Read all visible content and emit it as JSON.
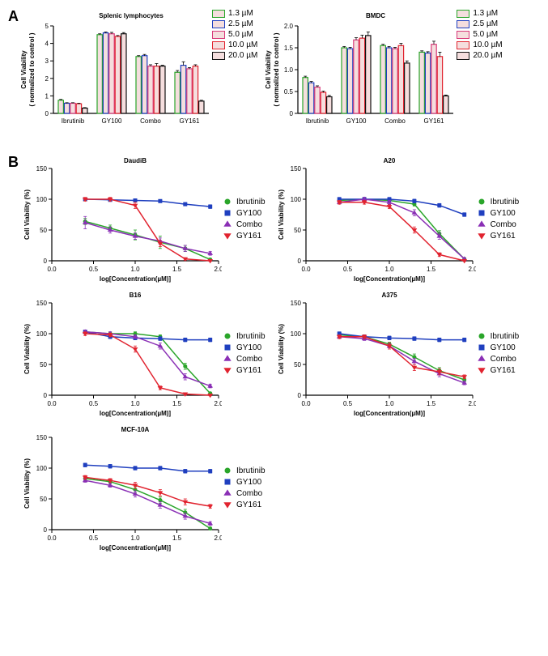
{
  "panelA": {
    "label": "A",
    "charts": [
      {
        "title": "Splenic lymphocytes",
        "title_fontsize": 14,
        "ylabel": "Cell Viability\n( normalized to control )",
        "ylim": [
          0,
          5
        ],
        "ytick_step": 1,
        "categories": [
          "Ibrutinib",
          "GY100",
          "Combo",
          "GY161"
        ],
        "legend": [
          "1.3 µM",
          "2.5 µM",
          "5.0 µM",
          "10.0 µM",
          "20.0 µM"
        ],
        "colors": [
          "#2aa52a",
          "#1f3fbf",
          "#d83a7a",
          "#e1232f",
          "#111111"
        ],
        "bar_fill": "#ffffff",
        "pattern_fill": "#f5dede",
        "values": [
          [
            0.75,
            0.58,
            0.58,
            0.55,
            0.3
          ],
          [
            4.5,
            4.6,
            4.55,
            4.4,
            4.55
          ],
          [
            3.25,
            3.3,
            2.7,
            2.7,
            2.7
          ],
          [
            2.35,
            2.75,
            2.55,
            2.7,
            0.7
          ]
        ],
        "errors": [
          [
            0.05,
            0.03,
            0.03,
            0.03,
            0.03
          ],
          [
            0.05,
            0.05,
            0.08,
            0.05,
            0.07
          ],
          [
            0.05,
            0.07,
            0.08,
            0.15,
            0.05
          ],
          [
            0.1,
            0.2,
            0.07,
            0.08,
            0.05
          ]
        ]
      },
      {
        "title": "BMDC",
        "title_fontsize": 14,
        "ylabel": "Cell Viability\n( normalized to control )",
        "ylim": [
          0,
          2.0
        ],
        "ytick_step": 0.5,
        "categories": [
          "Ibrutinib",
          "GY100",
          "Combo",
          "GY161"
        ],
        "legend": [
          "1.3 µM",
          "2.5 µM",
          "5.0 µM",
          "10.0 µM",
          "20.0 µM"
        ],
        "colors": [
          "#2aa52a",
          "#1f3fbf",
          "#d83a7a",
          "#e1232f",
          "#111111"
        ],
        "bar_fill": "#ffffff",
        "pattern_fill": "#f5dede",
        "values": [
          [
            0.82,
            0.7,
            0.6,
            0.48,
            0.38
          ],
          [
            1.5,
            1.48,
            1.68,
            1.72,
            1.78
          ],
          [
            1.55,
            1.5,
            1.48,
            1.55,
            1.15
          ],
          [
            1.4,
            1.38,
            1.58,
            1.3,
            0.4
          ]
        ],
        "errors": [
          [
            0.03,
            0.03,
            0.03,
            0.03,
            0.03
          ],
          [
            0.03,
            0.03,
            0.05,
            0.07,
            0.08
          ],
          [
            0.03,
            0.03,
            0.03,
            0.05,
            0.05
          ],
          [
            0.03,
            0.03,
            0.07,
            0.1,
            0.02
          ]
        ]
      }
    ]
  },
  "panelB": {
    "label": "B",
    "xlabel": "log[Concentration(µM)]",
    "ylabel": "Cell Viability (%)",
    "xlim": [
      0.0,
      2.0
    ],
    "xtick_step": 0.5,
    "ylim": [
      0,
      150
    ],
    "ytick_step": 50,
    "series_labels": [
      "Ibrutinib",
      "GY100",
      "Combo",
      "GY161"
    ],
    "series_colors": [
      "#2aa52a",
      "#1f3fbf",
      "#8a2fb5",
      "#e1232f"
    ],
    "series_markers": [
      "circle",
      "square",
      "triangle-up",
      "triangle-down"
    ],
    "charts": [
      {
        "title": "DaudiB",
        "curves": {
          "Ibrutinib": [
            [
              0.4,
              64
            ],
            [
              0.7,
              53
            ],
            [
              1.0,
              42
            ],
            [
              1.3,
              30
            ],
            [
              1.6,
              20
            ],
            [
              1.9,
              2
            ]
          ],
          "GY100": [
            [
              0.4,
              100
            ],
            [
              0.7,
              99
            ],
            [
              1.0,
              98
            ],
            [
              1.3,
              97
            ],
            [
              1.6,
              92
            ],
            [
              1.9,
              88
            ]
          ],
          "Combo": [
            [
              0.4,
              62
            ],
            [
              0.7,
              50
            ],
            [
              1.0,
              40
            ],
            [
              1.3,
              32
            ],
            [
              1.6,
              20
            ],
            [
              1.9,
              12
            ]
          ],
          "GY161": [
            [
              0.4,
              100
            ],
            [
              0.7,
              100
            ],
            [
              1.0,
              90
            ],
            [
              1.3,
              28
            ],
            [
              1.6,
              3
            ],
            [
              1.9,
              0
            ]
          ]
        },
        "errors": {
          "Ibrutinib": [
            5,
            5,
            8,
            10,
            5,
            2
          ],
          "GY100": [
            2,
            2,
            2,
            2,
            2,
            3
          ],
          "Combo": [
            10,
            5,
            5,
            5,
            5,
            3
          ],
          "GY161": [
            3,
            3,
            5,
            5,
            2,
            1
          ]
        }
      },
      {
        "title": "A20",
        "curves": {
          "Ibrutinib": [
            [
              0.4,
              98
            ],
            [
              0.7,
              100
            ],
            [
              1.0,
              98
            ],
            [
              1.3,
              92
            ],
            [
              1.6,
              44
            ],
            [
              1.9,
              3
            ]
          ],
          "GY100": [
            [
              0.4,
              100
            ],
            [
              0.7,
              100
            ],
            [
              1.0,
              100
            ],
            [
              1.3,
              97
            ],
            [
              1.6,
              90
            ],
            [
              1.9,
              75
            ]
          ],
          "Combo": [
            [
              0.4,
              95
            ],
            [
              0.7,
              100
            ],
            [
              1.0,
              95
            ],
            [
              1.3,
              78
            ],
            [
              1.6,
              40
            ],
            [
              1.9,
              3
            ]
          ],
          "GY161": [
            [
              0.4,
              95
            ],
            [
              0.7,
              95
            ],
            [
              1.0,
              88
            ],
            [
              1.3,
              50
            ],
            [
              1.6,
              10
            ],
            [
              1.9,
              0
            ]
          ]
        },
        "errors": {
          "Ibrutinib": [
            3,
            3,
            3,
            3,
            5,
            2
          ],
          "GY100": [
            3,
            3,
            3,
            3,
            3,
            3
          ],
          "Combo": [
            3,
            3,
            3,
            5,
            5,
            2
          ],
          "GY161": [
            3,
            3,
            3,
            5,
            3,
            1
          ]
        }
      },
      {
        "title": "B16",
        "curves": {
          "Ibrutinib": [
            [
              0.4,
              103
            ],
            [
              0.7,
              100
            ],
            [
              1.0,
              100
            ],
            [
              1.3,
              95
            ],
            [
              1.6,
              47
            ],
            [
              1.9,
              3
            ]
          ],
          "GY100": [
            [
              0.4,
              103
            ],
            [
              0.7,
              95
            ],
            [
              1.0,
              93
            ],
            [
              1.3,
              92
            ],
            [
              1.6,
              90
            ],
            [
              1.9,
              90
            ]
          ],
          "Combo": [
            [
              0.4,
              103
            ],
            [
              0.7,
              100
            ],
            [
              1.0,
              95
            ],
            [
              1.3,
              80
            ],
            [
              1.6,
              30
            ],
            [
              1.9,
              15
            ]
          ],
          "GY161": [
            [
              0.4,
              100
            ],
            [
              0.7,
              98
            ],
            [
              1.0,
              75
            ],
            [
              1.3,
              12
            ],
            [
              1.6,
              2
            ],
            [
              1.9,
              0
            ]
          ]
        },
        "errors": {
          "Ibrutinib": [
            3,
            3,
            3,
            3,
            5,
            2
          ],
          "GY100": [
            3,
            3,
            3,
            3,
            3,
            3
          ],
          "Combo": [
            3,
            3,
            3,
            5,
            5,
            3
          ],
          "GY161": [
            3,
            3,
            5,
            3,
            2,
            1
          ]
        }
      },
      {
        "title": "A375",
        "curves": {
          "Ibrutinib": [
            [
              0.4,
              98
            ],
            [
              0.7,
              95
            ],
            [
              1.0,
              83
            ],
            [
              1.3,
              62
            ],
            [
              1.6,
              40
            ],
            [
              1.9,
              25
            ]
          ],
          "GY100": [
            [
              0.4,
              100
            ],
            [
              0.7,
              95
            ],
            [
              1.0,
              93
            ],
            [
              1.3,
              92
            ],
            [
              1.6,
              90
            ],
            [
              1.9,
              90
            ]
          ],
          "Combo": [
            [
              0.4,
              95
            ],
            [
              0.7,
              92
            ],
            [
              1.0,
              80
            ],
            [
              1.3,
              55
            ],
            [
              1.6,
              35
            ],
            [
              1.9,
              20
            ]
          ],
          "GY161": [
            [
              0.4,
              95
            ],
            [
              0.7,
              95
            ],
            [
              1.0,
              80
            ],
            [
              1.3,
              45
            ],
            [
              1.6,
              38
            ],
            [
              1.9,
              30
            ]
          ]
        },
        "errors": {
          "Ibrutinib": [
            3,
            3,
            3,
            5,
            5,
            3
          ],
          "GY100": [
            3,
            3,
            3,
            3,
            3,
            3
          ],
          "Combo": [
            3,
            3,
            3,
            5,
            5,
            3
          ],
          "GY161": [
            3,
            3,
            5,
            5,
            5,
            3
          ]
        }
      },
      {
        "title": "MCF-10A",
        "curves": {
          "Ibrutinib": [
            [
              0.4,
              83
            ],
            [
              0.7,
              78
            ],
            [
              1.0,
              65
            ],
            [
              1.3,
              48
            ],
            [
              1.6,
              28
            ],
            [
              1.9,
              2
            ]
          ],
          "GY100": [
            [
              0.4,
              105
            ],
            [
              0.7,
              103
            ],
            [
              1.0,
              100
            ],
            [
              1.3,
              100
            ],
            [
              1.6,
              95
            ],
            [
              1.9,
              95
            ]
          ],
          "Combo": [
            [
              0.4,
              80
            ],
            [
              0.7,
              72
            ],
            [
              1.0,
              58
            ],
            [
              1.3,
              40
            ],
            [
              1.6,
              22
            ],
            [
              1.9,
              10
            ]
          ],
          "GY161": [
            [
              0.4,
              85
            ],
            [
              0.7,
              80
            ],
            [
              1.0,
              72
            ],
            [
              1.3,
              60
            ],
            [
              1.6,
              45
            ],
            [
              1.9,
              38
            ]
          ]
        },
        "errors": {
          "Ibrutinib": [
            3,
            3,
            5,
            5,
            5,
            2
          ],
          "GY100": [
            3,
            3,
            3,
            3,
            3,
            3
          ],
          "Combo": [
            3,
            3,
            5,
            5,
            5,
            3
          ],
          "GY161": [
            3,
            3,
            5,
            5,
            5,
            3
          ]
        }
      }
    ]
  },
  "styling": {
    "bg": "#ffffff",
    "axis_color": "#000000",
    "tick_len": 4,
    "line_width": 1.5,
    "marker_size": 5
  }
}
